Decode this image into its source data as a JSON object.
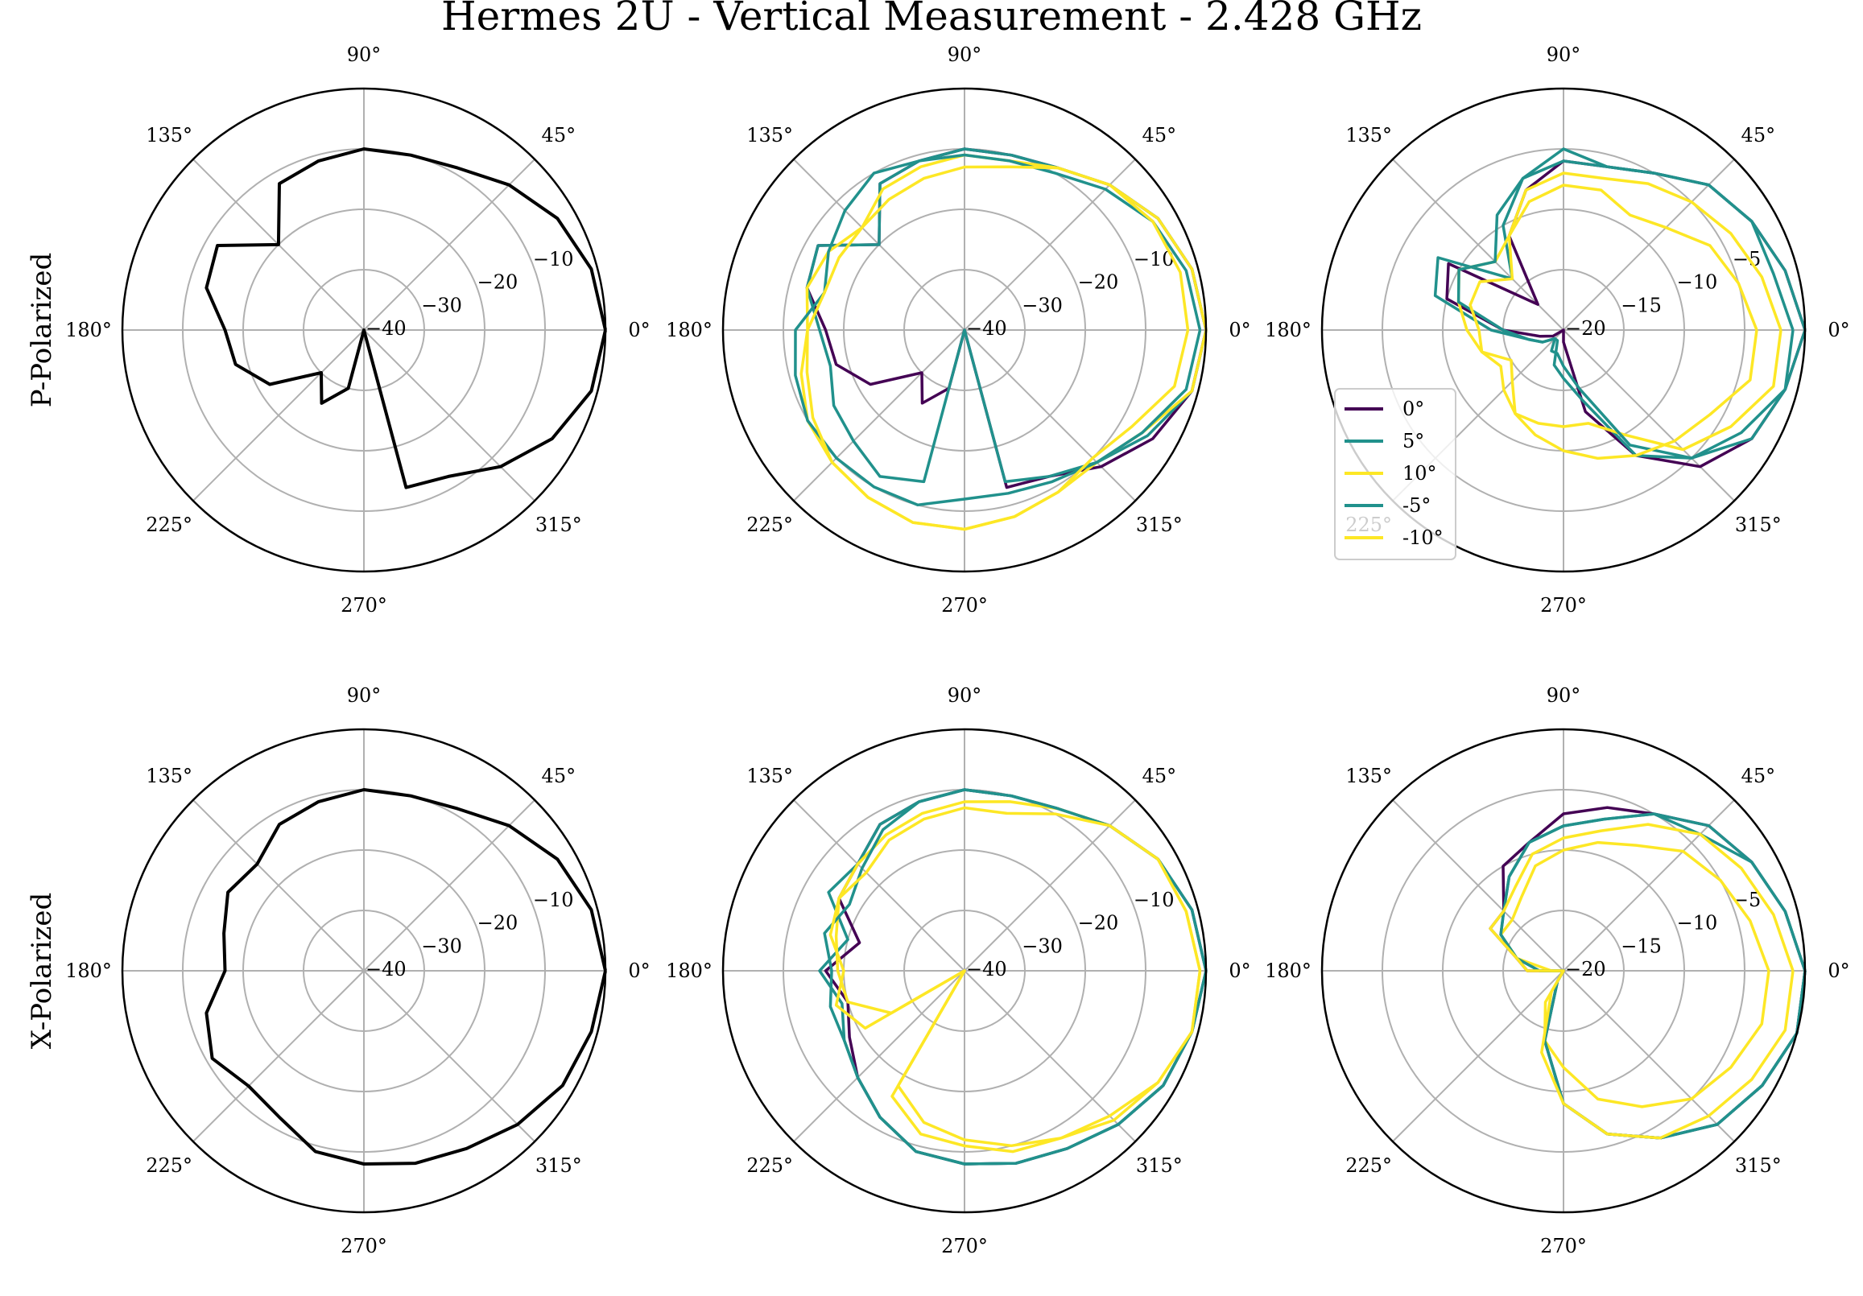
{
  "title": "Hermes 2U - Vertical Measurement - 2.428 GHz",
  "row_labels": [
    "P-Polarized",
    "X-Polarized"
  ],
  "colors": {
    "0°": "#440154",
    "5°": "#21918c",
    "10°": "#fde725",
    "-5°": "#21918c",
    "-10°": "#fde725",
    "single": "#000000",
    "grid": "#b0b0b0"
  },
  "chart_data": [
    {
      "type": "line",
      "subtype": "polar",
      "angle_ticks": [
        "0°",
        "45°",
        "90°",
        "135°",
        "180°",
        "225°",
        "270°",
        "315°"
      ],
      "radial_ticks": [
        "−40",
        "−30",
        "−20",
        "−10"
      ],
      "rlim": [
        -40,
        0
      ],
      "grid": true,
      "theta": [
        0,
        15,
        30,
        45,
        60,
        75,
        90,
        105,
        120,
        135,
        150,
        165,
        180,
        195,
        210,
        225,
        240,
        255,
        270,
        285,
        300,
        315,
        330,
        345
      ],
      "series": [
        {
          "values": [
            0,
            -1,
            -3,
            -6,
            -9,
            -10,
            -10,
            -11,
            -12,
            -20,
            -12,
            -13,
            -17,
            -18,
            -22,
            -30,
            -26,
            -30,
            -40,
            -13,
            -12,
            -8,
            -4,
            -1
          ]
        }
      ]
    },
    {
      "type": "line",
      "subtype": "polar",
      "angle_ticks": [
        "0°",
        "45°",
        "90°",
        "135°",
        "180°",
        "225°",
        "270°",
        "315°"
      ],
      "radial_ticks": [
        "−40",
        "−30",
        "−20",
        "−10"
      ],
      "rlim": [
        -40,
        0
      ],
      "grid": true,
      "theta": [
        0,
        15,
        30,
        45,
        60,
        75,
        90,
        105,
        120,
        135,
        150,
        165,
        180,
        195,
        210,
        225,
        240,
        255,
        270,
        285,
        300,
        315,
        330,
        345
      ],
      "series": [
        {
          "name": "0°",
          "values": [
            0,
            -1,
            -3,
            -6,
            -9,
            -10,
            -10,
            -11,
            -12,
            -20,
            -12,
            -13,
            -17,
            -18,
            -22,
            -30,
            -26,
            -30,
            -40,
            -13,
            -12,
            -8,
            -4,
            -1
          ]
        },
        {
          "name": "5°",
          "values": [
            0,
            -1,
            -3,
            -6,
            -9,
            -10,
            -10,
            -11,
            -12,
            -20,
            -12,
            -13,
            -16,
            -17,
            -15,
            -14,
            -12,
            -14,
            -40,
            -14,
            -12,
            -9,
            -5,
            -1
          ]
        },
        {
          "name": "10°",
          "values": [
            0,
            -1,
            -3,
            -6,
            -9,
            -11,
            -11,
            -12,
            -13,
            -16,
            -14,
            -13,
            -14,
            -12,
            -10,
            -9,
            -8,
            -7,
            -7,
            -8,
            -9,
            -9,
            -6,
            -1
          ]
        },
        {
          "name": "-5°",
          "values": [
            -1,
            -2,
            -4,
            -7,
            -10,
            -11,
            -11,
            -11,
            -10,
            -12,
            -14,
            -16,
            -12,
            -11,
            -10,
            -10,
            -10,
            -10,
            -12,
            -12,
            -11,
            -9,
            -6,
            -2
          ]
        },
        {
          "name": "-10°",
          "values": [
            -3,
            -3,
            -4,
            -6,
            -9,
            -12,
            -13,
            -14,
            -15,
            -16,
            -16,
            -16,
            -14,
            -13,
            -11,
            -9,
            -8,
            -7,
            -7,
            -8,
            -9,
            -10,
            -8,
            -4
          ]
        }
      ]
    },
    {
      "type": "line",
      "subtype": "polar",
      "angle_ticks": [
        "0°",
        "45°",
        "90°",
        "135°",
        "180°",
        "225°",
        "270°",
        "315°"
      ],
      "radial_ticks": [
        "−20",
        "−15",
        "−10",
        "−5"
      ],
      "rlim": [
        -20,
        0
      ],
      "grid": true,
      "legend": "lower-left",
      "theta": [
        0,
        15,
        30,
        45,
        60,
        75,
        90,
        105,
        120,
        135,
        150,
        165,
        180,
        195,
        210,
        225,
        240,
        255,
        270,
        285,
        300,
        315,
        330,
        345
      ],
      "series": [
        {
          "name": "0°",
          "values": [
            0,
            -1,
            -2,
            -3,
            -5,
            -6,
            -6,
            -8,
            -11,
            -17,
            -9,
            -10,
            -15,
            -18,
            -19,
            -20,
            -20,
            -20,
            -19,
            -13,
            -8,
            -4,
            -2,
            -1
          ]
        },
        {
          "name": "5°",
          "values": [
            0,
            -1,
            -2,
            -3,
            -5,
            -6,
            -5,
            -7,
            -10,
            -14,
            -8,
            -9,
            -14,
            -17,
            -18,
            -19,
            -19,
            -17,
            -16,
            -14,
            -8,
            -5,
            -2,
            -1
          ]
        },
        {
          "name": "10°",
          "values": [
            -2,
            -3,
            -4,
            -5,
            -6,
            -7,
            -7,
            -8,
            -11,
            -12,
            -10,
            -11,
            -12,
            -13,
            -14,
            -13,
            -12,
            -12,
            -12,
            -12,
            -10,
            -6,
            -4,
            -2
          ]
        },
        {
          "name": "-5°",
          "values": [
            -1,
            -2,
            -2,
            -3,
            -5,
            -6,
            -6,
            -7,
            -9,
            -12,
            -10,
            -11,
            -15,
            -17,
            -18,
            -19,
            -18,
            -18,
            -17,
            -15,
            -9,
            -5,
            -3,
            -1
          ]
        },
        {
          "name": "-10°",
          "values": [
            -4,
            -5,
            -6,
            -8,
            -9,
            -8,
            -8,
            -9,
            -11,
            -14,
            -12,
            -12,
            -13,
            -13,
            -15,
            -14,
            -12,
            -11,
            -10,
            -9,
            -8,
            -7,
            -6,
            -4
          ]
        }
      ]
    },
    {
      "type": "line",
      "subtype": "polar",
      "angle_ticks": [
        "0°",
        "45°",
        "90°",
        "135°",
        "180°",
        "225°",
        "270°",
        "315°"
      ],
      "radial_ticks": [
        "−40",
        "−30",
        "−20",
        "−10"
      ],
      "rlim": [
        -40,
        0
      ],
      "grid": true,
      "theta": [
        0,
        15,
        30,
        45,
        60,
        75,
        90,
        105,
        120,
        135,
        150,
        165,
        180,
        195,
        210,
        225,
        240,
        255,
        270,
        285,
        300,
        315,
        330,
        345
      ],
      "series": [
        {
          "values": [
            0,
            -1,
            -3,
            -6,
            -9,
            -10,
            -10,
            -11,
            -12,
            -15,
            -14,
            -16,
            -17,
            -13,
            -11,
            -13,
            -12,
            -9,
            -8,
            -7,
            -6,
            -4,
            -2,
            -1
          ]
        }
      ]
    },
    {
      "type": "line",
      "subtype": "polar",
      "angle_ticks": [
        "0°",
        "45°",
        "90°",
        "135°",
        "180°",
        "225°",
        "270°",
        "315°"
      ],
      "radial_ticks": [
        "−40",
        "−30",
        "−20",
        "−10"
      ],
      "rlim": [
        -40,
        0
      ],
      "grid": true,
      "theta": [
        0,
        15,
        30,
        45,
        60,
        75,
        90,
        105,
        120,
        135,
        150,
        165,
        180,
        195,
        210,
        225,
        240,
        255,
        270,
        285,
        300,
        315,
        330,
        345
      ],
      "series": [
        {
          "name": "0°",
          "values": [
            0,
            -1,
            -3,
            -6,
            -9,
            -10,
            -10,
            -11,
            -12,
            -15,
            -16,
            -22,
            -17,
            -20,
            -18,
            -15,
            -12,
            -9,
            -8,
            -7,
            -6,
            -4,
            -2,
            -1
          ]
        },
        {
          "name": "5°",
          "values": [
            0,
            -1,
            -3,
            -6,
            -9,
            -10,
            -10,
            -11,
            -12,
            -15,
            -14,
            -20,
            -16,
            -19,
            -17,
            -15,
            -12,
            -9,
            -8,
            -7,
            -6,
            -4,
            -2,
            -1
          ]
        },
        {
          "name": "10°",
          "values": [
            -1,
            -2,
            -3,
            -6,
            -9,
            -11,
            -12,
            -13,
            -14,
            -15,
            -16,
            -18,
            -19,
            -20,
            -26,
            -40,
            -18,
            -14,
            -12,
            -10,
            -8,
            -6,
            -3,
            -1
          ]
        },
        {
          "name": "-5°",
          "values": [
            0,
            -1,
            -3,
            -6,
            -9,
            -10,
            -10,
            -11,
            -13,
            -16,
            -18,
            -16,
            -18,
            -17,
            -17,
            -15,
            -12,
            -9,
            -8,
            -7,
            -6,
            -4,
            -2,
            -1
          ]
        },
        {
          "name": "-10°",
          "values": [
            -1,
            -2,
            -3,
            -6,
            -10,
            -13,
            -13,
            -14,
            -15,
            -17,
            -16,
            -17,
            -20,
            -18,
            -21,
            -40,
            -16,
            -12,
            -11,
            -9,
            -8,
            -5,
            -3,
            -1
          ]
        }
      ]
    },
    {
      "type": "line",
      "subtype": "polar",
      "angle_ticks": [
        "0°",
        "45°",
        "90°",
        "135°",
        "180°",
        "225°",
        "270°",
        "315°"
      ],
      "radial_ticks": [
        "−20",
        "−15",
        "−10",
        "−5"
      ],
      "rlim": [
        -20,
        0
      ],
      "grid": true,
      "theta": [
        0,
        15,
        30,
        45,
        60,
        75,
        90,
        105,
        120,
        135,
        150,
        165,
        180,
        195,
        210,
        225,
        240,
        255,
        270,
        285,
        300,
        315,
        330,
        345
      ],
      "series": [
        {
          "name": "0°",
          "values": [
            0,
            -1,
            -2,
            -3,
            -5,
            -6,
            -7,
            -9,
            -10,
            -13,
            -13,
            -16,
            -17,
            -20,
            -20,
            -20,
            -19,
            -14,
            -9,
            -6,
            -4,
            -2,
            -1,
            0
          ]
        },
        {
          "name": "5°",
          "values": [
            0,
            -1,
            -2,
            -3,
            -5,
            -7,
            -8,
            -9,
            -11,
            -13,
            -14,
            -16,
            -18,
            -20,
            -20,
            -20,
            -19,
            -14,
            -9,
            -6,
            -4,
            -2,
            -1,
            0
          ]
        },
        {
          "name": "10°",
          "values": [
            -3,
            -4,
            -5,
            -6,
            -8,
            -9,
            -10,
            -11,
            -13,
            -14,
            -14,
            -16,
            -19,
            -20,
            -20,
            -20,
            -17,
            -14,
            -12,
            -9,
            -7,
            -5,
            -4,
            -3
          ]
        },
        {
          "name": "-5°",
          "values": [
            0,
            -1,
            -2,
            -4,
            -5,
            -7,
            -8,
            -9,
            -11,
            -13,
            -14,
            -16,
            -18,
            -20,
            -20,
            -20,
            -19,
            -14,
            -9,
            -6,
            -4,
            -2,
            -1,
            0
          ]
        },
        {
          "name": "-10°",
          "values": [
            -1,
            -2,
            -3,
            -4,
            -6,
            -8,
            -9,
            -10,
            -12,
            -13,
            -13,
            -16,
            -17,
            -20,
            -20,
            -20,
            -18,
            -13,
            -9,
            -6,
            -4,
            -3,
            -2,
            -1
          ]
        }
      ]
    }
  ]
}
